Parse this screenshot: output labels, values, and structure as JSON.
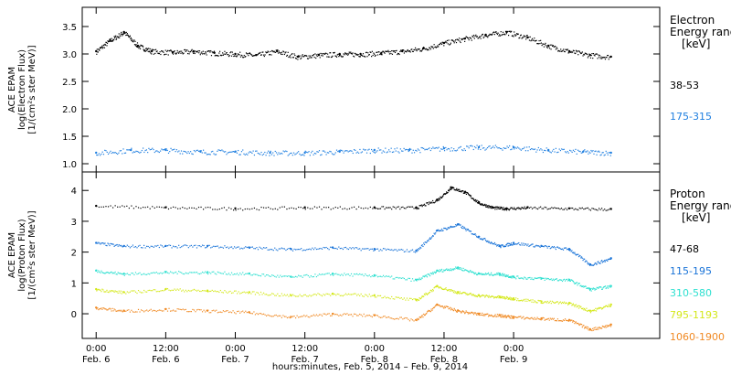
{
  "chart_data": [
    {
      "type": "scatter",
      "panel": "electron",
      "ylabel_lines": [
        "ACE EPAM",
        "log(Electron Flux)",
        "[1/(cm²s ster MeV)]"
      ],
      "ylim": [
        0.85,
        3.85
      ],
      "yticks": [
        "1.0",
        "1.5",
        "2.0",
        "2.5",
        "3.0",
        "3.5"
      ],
      "legend_title": [
        "Electron",
        "Energy range",
        "[keV]"
      ],
      "series": [
        {
          "name": "38-53",
          "color": "#000000",
          "x": [
            0.0,
            0.1,
            0.2,
            0.3,
            0.4,
            0.55,
            0.7,
            0.85,
            1.0,
            1.15,
            1.3,
            1.45,
            1.6,
            1.75,
            1.9,
            2.05,
            2.2,
            2.35,
            2.5,
            2.65,
            2.8,
            2.95,
            3.1,
            3.25,
            3.4,
            3.55,
            3.7
          ],
          "values": [
            3.05,
            3.25,
            3.4,
            3.15,
            3.05,
            3.03,
            3.05,
            3.02,
            3.0,
            2.98,
            3.05,
            2.95,
            2.98,
            3.0,
            3.0,
            3.02,
            3.05,
            3.1,
            3.2,
            3.28,
            3.35,
            3.4,
            3.3,
            3.15,
            3.05,
            2.98,
            2.95
          ]
        },
        {
          "name": "175-315",
          "color": "#1f7fe0",
          "x": [
            0.0,
            0.25,
            0.5,
            0.75,
            1.0,
            1.25,
            1.5,
            1.75,
            2.0,
            2.25,
            2.5,
            2.75,
            3.0,
            3.25,
            3.5,
            3.7
          ],
          "values": [
            1.2,
            1.25,
            1.25,
            1.22,
            1.22,
            1.2,
            1.2,
            1.22,
            1.25,
            1.25,
            1.28,
            1.3,
            1.3,
            1.25,
            1.22,
            1.2
          ]
        }
      ]
    },
    {
      "type": "scatter",
      "panel": "proton",
      "ylabel_lines": [
        "ACE EPAM",
        "log(Proton Flux)",
        "[1/(cm²s ster MeV)]"
      ],
      "ylim": [
        -0.8,
        4.6
      ],
      "yticks": [
        "0",
        "1",
        "2",
        "3",
        "4"
      ],
      "legend_title": [
        "Proton",
        "Energy range",
        "[keV]"
      ],
      "series": [
        {
          "name": "47-68",
          "color": "#000000",
          "x": [
            0.0,
            0.5,
            1.0,
            1.5,
            2.0,
            2.3,
            2.45,
            2.55,
            2.65,
            2.75,
            2.85,
            2.95,
            3.1,
            3.4,
            3.7
          ],
          "values": [
            3.5,
            3.45,
            3.42,
            3.45,
            3.45,
            3.45,
            3.7,
            4.1,
            3.95,
            3.6,
            3.45,
            3.42,
            3.45,
            3.42,
            3.4
          ]
        },
        {
          "name": "115-195",
          "color": "#1a74d8",
          "x": [
            0.0,
            0.2,
            0.5,
            0.8,
            1.1,
            1.4,
            1.7,
            2.0,
            2.3,
            2.45,
            2.6,
            2.75,
            2.9,
            3.0,
            3.2,
            3.4,
            3.55,
            3.7
          ],
          "values": [
            2.3,
            2.2,
            2.2,
            2.2,
            2.15,
            2.1,
            2.15,
            2.1,
            2.05,
            2.7,
            2.9,
            2.5,
            2.2,
            2.3,
            2.2,
            2.1,
            1.6,
            1.8
          ]
        },
        {
          "name": "310-580",
          "color": "#2fe0d0",
          "x": [
            0.0,
            0.2,
            0.5,
            0.8,
            1.1,
            1.4,
            1.7,
            2.0,
            2.3,
            2.45,
            2.6,
            2.75,
            2.9,
            3.0,
            3.2,
            3.4,
            3.55,
            3.7
          ],
          "values": [
            1.4,
            1.3,
            1.35,
            1.35,
            1.3,
            1.2,
            1.3,
            1.25,
            1.1,
            1.4,
            1.5,
            1.3,
            1.3,
            1.2,
            1.15,
            1.1,
            0.8,
            0.9
          ]
        },
        {
          "name": "795-1193",
          "color": "#d4e81a",
          "x": [
            0.0,
            0.2,
            0.5,
            0.8,
            1.1,
            1.4,
            1.7,
            2.0,
            2.3,
            2.45,
            2.6,
            2.75,
            2.9,
            3.0,
            3.2,
            3.4,
            3.55,
            3.7
          ],
          "values": [
            0.8,
            0.7,
            0.8,
            0.75,
            0.7,
            0.6,
            0.65,
            0.6,
            0.45,
            0.9,
            0.7,
            0.6,
            0.55,
            0.5,
            0.4,
            0.35,
            0.1,
            0.3
          ]
        },
        {
          "name": "1060-1900",
          "color": "#f08a24",
          "x": [
            0.0,
            0.2,
            0.5,
            0.8,
            1.1,
            1.4,
            1.7,
            2.0,
            2.3,
            2.45,
            2.6,
            2.75,
            2.9,
            3.0,
            3.2,
            3.4,
            3.55,
            3.7
          ],
          "values": [
            0.2,
            0.1,
            0.15,
            0.1,
            0.05,
            -0.1,
            0.0,
            -0.05,
            -0.2,
            0.3,
            0.1,
            0.0,
            -0.05,
            -0.1,
            -0.15,
            -0.2,
            -0.5,
            -0.35
          ]
        }
      ]
    }
  ],
  "xaxis": {
    "xlim": [
      -0.1,
      4.05
    ],
    "ticks": [
      {
        "x": 0.0,
        "lines": [
          "0:00",
          "Feb. 6"
        ]
      },
      {
        "x": 0.5,
        "lines": [
          "12:00",
          "Feb. 6"
        ]
      },
      {
        "x": 1.0,
        "lines": [
          "0:00",
          "Feb. 7"
        ]
      },
      {
        "x": 1.5,
        "lines": [
          "12:00",
          "Feb. 7"
        ]
      },
      {
        "x": 2.0,
        "lines": [
          "0:00",
          "Feb. 8"
        ]
      },
      {
        "x": 2.5,
        "lines": [
          "12:00",
          "Feb. 8"
        ]
      },
      {
        "x": 3.0,
        "lines": [
          "0:00",
          "Feb. 9"
        ]
      }
    ],
    "label": "hours:minutes, Feb. 5, 2014 – Feb. 9, 2014"
  }
}
